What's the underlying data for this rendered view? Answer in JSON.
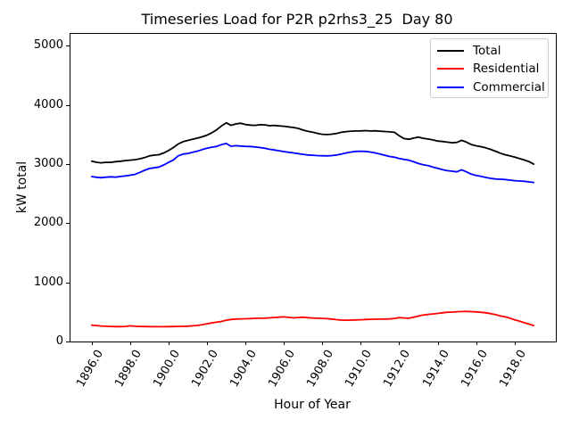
{
  "chart_data": {
    "type": "line",
    "title": "Timeseries Load for P2R p2rhs3_25  Day 80",
    "xlabel": "Hour of Year",
    "ylabel": "kW total",
    "xlim": [
      1894.85,
      1920.15
    ],
    "ylim": [
      0,
      5218
    ],
    "grid": false,
    "x_tick_values": [
      1896,
      1898,
      1900,
      1902,
      1904,
      1906,
      1908,
      1910,
      1912,
      1914,
      1916,
      1918
    ],
    "x_tick_labels": [
      "1896.0",
      "1898.0",
      "1900.0",
      "1902.0",
      "1904.0",
      "1906.0",
      "1908.0",
      "1910.0",
      "1912.0",
      "1914.0",
      "1916.0",
      "1918.0"
    ],
    "y_tick_values": [
      0,
      1000,
      2000,
      3000,
      4000,
      5000
    ],
    "y_tick_labels": [
      "0",
      "1000",
      "2000",
      "3000",
      "4000",
      "5000"
    ],
    "x_start": 1896,
    "x_step": 0.25,
    "legend": {
      "position": "upper right",
      "border_color": "#cccccc"
    },
    "axis_color": "#000000",
    "series": [
      {
        "name": "Total",
        "color": "#000000",
        "values": [
          3050,
          3032,
          3022,
          3032,
          3030,
          3042,
          3050,
          3060,
          3068,
          3075,
          3090,
          3110,
          3140,
          3152,
          3160,
          3190,
          3230,
          3280,
          3340,
          3380,
          3400,
          3422,
          3440,
          3462,
          3490,
          3530,
          3580,
          3645,
          3700,
          3656,
          3680,
          3692,
          3670,
          3660,
          3656,
          3666,
          3664,
          3650,
          3656,
          3646,
          3640,
          3630,
          3620,
          3604,
          3575,
          3556,
          3540,
          3520,
          3505,
          3500,
          3506,
          3520,
          3540,
          3550,
          3558,
          3560,
          3562,
          3566,
          3560,
          3563,
          3558,
          3552,
          3546,
          3538,
          3480,
          3432,
          3420,
          3440,
          3456,
          3437,
          3425,
          3410,
          3390,
          3382,
          3372,
          3362,
          3368,
          3402,
          3372,
          3332,
          3310,
          3295,
          3275,
          3250,
          3220,
          3186,
          3160,
          3140,
          3120,
          3096,
          3070,
          3044,
          3000
        ]
      },
      {
        "name": "Residential",
        "color": "#ff0000",
        "values": [
          278,
          270,
          262,
          258,
          255,
          252,
          252,
          255,
          265,
          258,
          255,
          253,
          252,
          251,
          250,
          251,
          252,
          253,
          255,
          257,
          260,
          265,
          272,
          285,
          300,
          315,
          328,
          340,
          360,
          372,
          380,
          383,
          385,
          388,
          392,
          393,
          395,
          400,
          405,
          412,
          416,
          408,
          400,
          405,
          412,
          403,
          396,
          393,
          390,
          386,
          380,
          370,
          362,
          360,
          362,
          365,
          368,
          372,
          375,
          377,
          379,
          380,
          382,
          390,
          404,
          398,
          394,
          412,
          430,
          448,
          458,
          466,
          475,
          485,
          494,
          498,
          503,
          506,
          508,
          505,
          500,
          495,
          485,
          472,
          455,
          435,
          420,
          395,
          368,
          345,
          318,
          295,
          270
        ]
      },
      {
        "name": "Commercial",
        "color": "#0000ff",
        "values": [
          2790,
          2778,
          2770,
          2780,
          2785,
          2780,
          2792,
          2800,
          2812,
          2826,
          2860,
          2895,
          2925,
          2938,
          2952,
          2986,
          3030,
          3070,
          3140,
          3170,
          3180,
          3200,
          3220,
          3245,
          3270,
          3286,
          3300,
          3330,
          3350,
          3302,
          3312,
          3306,
          3300,
          3298,
          3290,
          3280,
          3270,
          3252,
          3240,
          3226,
          3212,
          3200,
          3190,
          3178,
          3165,
          3155,
          3150,
          3145,
          3142,
          3140,
          3145,
          3155,
          3170,
          3190,
          3205,
          3215,
          3218,
          3215,
          3205,
          3190,
          3170,
          3150,
          3130,
          3117,
          3095,
          3080,
          3066,
          3040,
          3010,
          2990,
          2975,
          2950,
          2930,
          2906,
          2890,
          2880,
          2870,
          2905,
          2870,
          2830,
          2810,
          2795,
          2775,
          2760,
          2750,
          2745,
          2740,
          2730,
          2720,
          2715,
          2710,
          2700,
          2690
        ]
      }
    ]
  }
}
